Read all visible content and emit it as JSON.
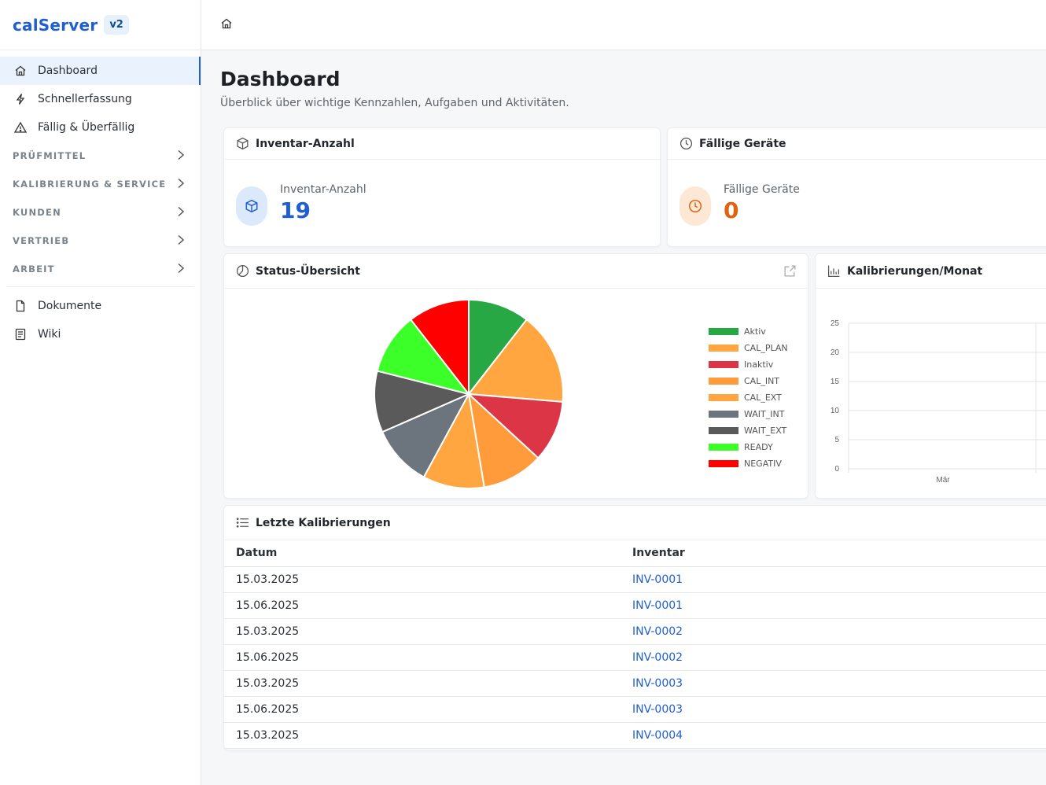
{
  "brand": {
    "name": "calServer",
    "badge": "v2"
  },
  "sidebar": {
    "items": [
      {
        "label": "Dashboard",
        "icon": "home-icon",
        "active": true
      },
      {
        "label": "Schnellerfassung",
        "icon": "lightning-icon"
      },
      {
        "label": "Fällig & Überfällig",
        "icon": "warning-icon"
      }
    ],
    "sections": [
      "PRÜFMITTEL",
      "KALIBRIERUNG & SERVICE",
      "KUNDEN",
      "VERTRIEB",
      "ARBEIT"
    ],
    "bottom_items": [
      {
        "label": "Dokumente",
        "icon": "document-icon"
      },
      {
        "label": "Wiki",
        "icon": "book-icon"
      }
    ]
  },
  "topbar": {
    "icon": "home-icon"
  },
  "page": {
    "title": "Dashboard",
    "subtitle": "Überblick über wichtige Kennzahlen, Aufgaben und Aktivitäten."
  },
  "cards": {
    "inventory": {
      "title": "Inventar-Anzahl",
      "label": "Inventar-Anzahl",
      "value": "19",
      "color": "#1f5fd0"
    },
    "due": {
      "title": "Fällige Geräte",
      "label": "Fällige Geräte",
      "value": "0",
      "color": "#e2620f"
    },
    "status": {
      "title": "Status-Übersicht"
    },
    "monthly": {
      "title": "Kalibrierungen/Monat"
    },
    "recent": {
      "title": "Letzte Kalibrierungen"
    }
  },
  "chart_data": [
    {
      "type": "pie",
      "title": "Status-Übersicht",
      "series": [
        {
          "name": "Aktiv",
          "value": 2,
          "color": "#28a745"
        },
        {
          "name": "CAL_PLAN",
          "value": 3,
          "color": "#ffa640"
        },
        {
          "name": "Inaktiv",
          "value": 2,
          "color": "#dc3545"
        },
        {
          "name": "CAL_INT",
          "value": 2,
          "color": "#ff9b3a"
        },
        {
          "name": "CAL_EXT",
          "value": 2,
          "color": "#ffa640"
        },
        {
          "name": "WAIT_INT",
          "value": 2,
          "color": "#6c757d"
        },
        {
          "name": "WAIT_EXT",
          "value": 2,
          "color": "#5a5a5a"
        },
        {
          "name": "READY",
          "value": 2,
          "color": "#3cff2a"
        },
        {
          "name": "NEGATIV",
          "value": 2,
          "color": "#ff0000"
        }
      ],
      "legend": "right"
    },
    {
      "type": "bar",
      "title": "Kalibrierungen/Monat",
      "categories": [
        "Mär"
      ],
      "values": [
        0
      ],
      "ylim": [
        0,
        25
      ],
      "yticks": [
        "0",
        "5",
        "10",
        "15",
        "20",
        "25"
      ],
      "grid": true
    }
  ],
  "table": {
    "headers": [
      "Datum",
      "Inventar"
    ],
    "rows": [
      [
        "15.03.2025",
        "INV-0001"
      ],
      [
        "15.06.2025",
        "INV-0001"
      ],
      [
        "15.03.2025",
        "INV-0002"
      ],
      [
        "15.06.2025",
        "INV-0002"
      ],
      [
        "15.03.2025",
        "INV-0003"
      ],
      [
        "15.06.2025",
        "INV-0003"
      ],
      [
        "15.03.2025",
        "INV-0004"
      ]
    ]
  }
}
